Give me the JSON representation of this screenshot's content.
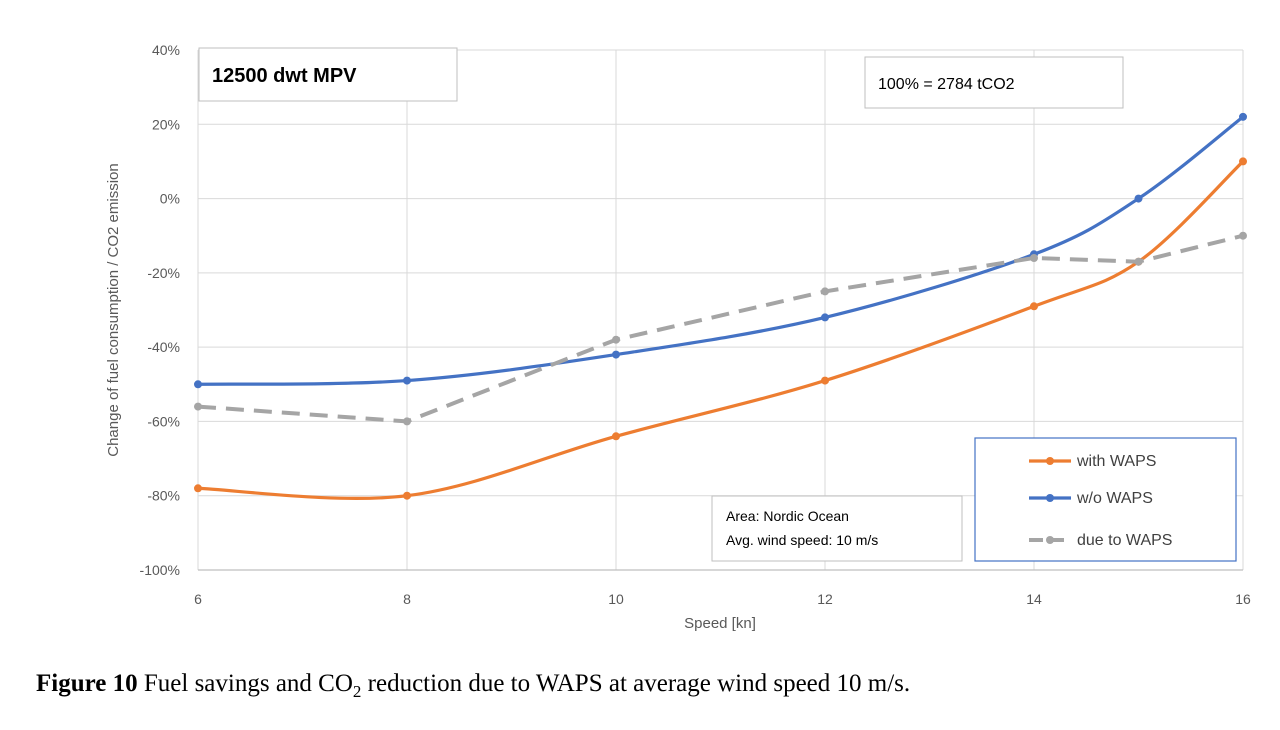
{
  "chart_data": {
    "type": "line",
    "xlabel": "Speed [kn]",
    "ylabel": "Change of fuel consumption / CO2 emission",
    "xlim": [
      6,
      16
    ],
    "ylim": [
      -100,
      40
    ],
    "x_ticks": [
      6,
      8,
      10,
      12,
      14,
      16
    ],
    "y_ticks": [
      40,
      20,
      0,
      -20,
      -40,
      -60,
      -80,
      -100
    ],
    "y_tick_labels": [
      "40%",
      "20%",
      "0%",
      "-20%",
      "-40%",
      "-60%",
      "-80%",
      "-100%"
    ],
    "grid": true,
    "series": [
      {
        "name": "with WAPS",
        "color": "#ED7D31",
        "dashed": false,
        "x": [
          6,
          8,
          10,
          12,
          14,
          15,
          16
        ],
        "values": [
          -78,
          -80,
          -64,
          -49,
          -29,
          -17,
          10
        ]
      },
      {
        "name": "w/o WAPS",
        "color": "#4472C4",
        "dashed": false,
        "x": [
          6,
          8,
          10,
          12,
          14,
          15,
          16
        ],
        "values": [
          -50,
          -49,
          -42,
          -32,
          -15,
          0,
          22
        ]
      },
      {
        "name": "due to WAPS",
        "color": "#A5A5A5",
        "dashed": true,
        "x": [
          6,
          8,
          10,
          12,
          14,
          15,
          16
        ],
        "values": [
          -56,
          -60,
          -38,
          -25,
          -16,
          -17,
          -10
        ]
      }
    ],
    "legend_position": "bottom-right",
    "annotations": {
      "title_box": "12500 dwt MPV",
      "reference_box": "100% = 2784 tCO2",
      "info_line1": "Area: Nordic Ocean",
      "info_line2": "Avg. wind speed: 10 m/s"
    }
  },
  "caption": {
    "label": "Figure 10",
    "text_pre": " Fuel savings and CO",
    "subscript": "2",
    "text_post": " reduction due to WAPS at average wind speed 10 m/s."
  }
}
